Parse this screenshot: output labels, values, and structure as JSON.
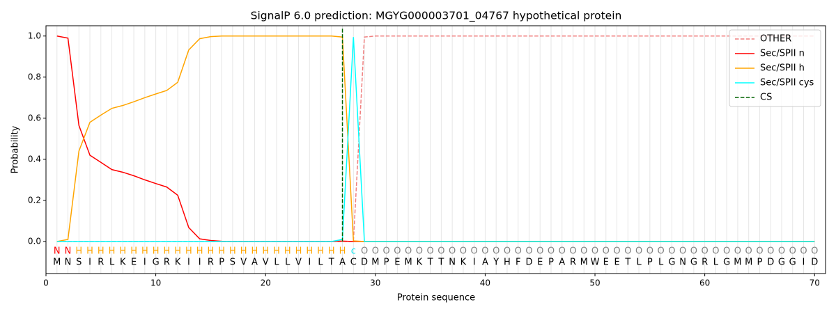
{
  "chart_data": {
    "type": "line",
    "title": "SignalP 6.0 prediction: MGYG000003701_04767 hypothetical protein",
    "x_label": "Protein sequence",
    "y_label": "Probability",
    "x": [
      1,
      2,
      3,
      4,
      5,
      6,
      7,
      8,
      9,
      10,
      11,
      12,
      13,
      14,
      15,
      16,
      17,
      18,
      19,
      20,
      21,
      22,
      23,
      24,
      25,
      26,
      27,
      28,
      29,
      30,
      31,
      32,
      33,
      34,
      35,
      36,
      37,
      38,
      39,
      40,
      41,
      42,
      43,
      44,
      45,
      46,
      47,
      48,
      49,
      50,
      51,
      52,
      53,
      54,
      55,
      56,
      57,
      58,
      59,
      60,
      61,
      62,
      63,
      64,
      65,
      66,
      67,
      68,
      69,
      70
    ],
    "residues": [
      "M",
      "N",
      "S",
      "I",
      "R",
      "L",
      "K",
      "E",
      "I",
      "G",
      "R",
      "K",
      "I",
      "I",
      "R",
      "P",
      "S",
      "V",
      "A",
      "V",
      "L",
      "L",
      "V",
      "I",
      "L",
      "T",
      "A",
      "C",
      "D",
      "M",
      "P",
      "E",
      "M",
      "K",
      "T",
      "T",
      "N",
      "K",
      "I",
      "A",
      "Y",
      "H",
      "F",
      "D",
      "E",
      "P",
      "A",
      "R",
      "M",
      "W",
      "E",
      "E",
      "T",
      "L",
      "P",
      "L",
      "G",
      "N",
      "G",
      "R",
      "L",
      "G",
      "M",
      "M",
      "P",
      "D",
      "G",
      "G",
      "I",
      "D"
    ],
    "region_labels": [
      "N",
      "N",
      "H",
      "H",
      "H",
      "H",
      "H",
      "H",
      "H",
      "H",
      "H",
      "H",
      "H",
      "H",
      "H",
      "H",
      "H",
      "H",
      "H",
      "H",
      "H",
      "H",
      "H",
      "H",
      "H",
      "H",
      "H",
      "c",
      "O",
      "O",
      "O",
      "O",
      "O",
      "O",
      "O",
      "O",
      "O",
      "O",
      "O",
      "O",
      "O",
      "O",
      "O",
      "O",
      "O",
      "O",
      "O",
      "O",
      "O",
      "O",
      "O",
      "O",
      "O",
      "O",
      "O",
      "O",
      "O",
      "O",
      "O",
      "O",
      "O",
      "O",
      "O",
      "O",
      "O",
      "O",
      "O",
      "O",
      "O",
      "O"
    ],
    "region_colors": {
      "N": "#ff0000",
      "H": "#ffa500",
      "c": "#00e5ee",
      "O": "#808080"
    },
    "series": [
      {
        "name": "OTHER",
        "color": "#f08080",
        "dashed": true,
        "values": [
          0,
          0,
          0,
          0,
          0,
          0,
          0,
          0,
          0,
          0,
          0,
          0,
          0,
          0,
          0,
          0,
          0,
          0,
          0,
          0,
          0,
          0,
          0,
          0,
          0,
          0,
          0,
          0,
          0.995,
          1,
          1,
          1,
          1,
          1,
          1,
          1,
          1,
          1,
          1,
          1,
          1,
          1,
          1,
          1,
          1,
          1,
          1,
          1,
          1,
          1,
          1,
          1,
          1,
          1,
          1,
          1,
          1,
          1,
          1,
          1,
          1,
          1,
          1,
          1,
          1,
          1,
          1,
          1,
          1,
          1
        ]
      },
      {
        "name": "Sec/SPII n",
        "color": "#ff0000",
        "dashed": false,
        "values": [
          1,
          0.99,
          0.565,
          0.42,
          0.385,
          0.35,
          0.337,
          0.32,
          0.3,
          0.282,
          0.265,
          0.225,
          0.068,
          0.013,
          0.005,
          0.001,
          0,
          0,
          0,
          0,
          0,
          0,
          0,
          0,
          0,
          0,
          0.002,
          0,
          0,
          0,
          0,
          0,
          0,
          0,
          0,
          0,
          0,
          0,
          0,
          0,
          0,
          0,
          0,
          0,
          0,
          0,
          0,
          0,
          0,
          0,
          0,
          0,
          0,
          0,
          0,
          0,
          0,
          0,
          0,
          0,
          0,
          0,
          0,
          0,
          0,
          0,
          0,
          0,
          0,
          0
        ]
      },
      {
        "name": "Sec/SPII h",
        "color": "#ffa500",
        "dashed": false,
        "values": [
          0,
          0.01,
          0.44,
          0.58,
          0.615,
          0.648,
          0.662,
          0.68,
          0.7,
          0.718,
          0.735,
          0.775,
          0.932,
          0.987,
          0.997,
          1,
          1,
          1,
          1,
          1,
          1,
          1,
          1,
          1,
          1,
          1,
          0.995,
          0.003,
          0,
          0,
          0,
          0,
          0,
          0,
          0,
          0,
          0,
          0,
          0,
          0,
          0,
          0,
          0,
          0,
          0,
          0,
          0,
          0,
          0,
          0,
          0,
          0,
          0,
          0,
          0,
          0,
          0,
          0,
          0,
          0,
          0,
          0,
          0,
          0,
          0,
          0,
          0,
          0,
          0,
          0
        ]
      },
      {
        "name": "Sec/SPII cys",
        "color": "#00ffff",
        "dashed": false,
        "values": [
          0,
          0,
          0,
          0,
          0,
          0,
          0,
          0,
          0,
          0,
          0,
          0,
          0,
          0,
          0,
          0,
          0,
          0,
          0,
          0,
          0,
          0,
          0,
          0,
          0,
          0,
          0.01,
          0.995,
          0,
          0,
          0,
          0,
          0,
          0,
          0,
          0,
          0,
          0,
          0,
          0,
          0,
          0,
          0,
          0,
          0,
          0,
          0,
          0,
          0,
          0,
          0,
          0,
          0,
          0,
          0,
          0,
          0,
          0,
          0,
          0,
          0,
          0,
          0,
          0,
          0,
          0,
          0,
          0,
          0,
          0
        ]
      },
      {
        "name": "CS",
        "color": "#006400",
        "dashed": true,
        "x": [
          27,
          27
        ],
        "values": [
          0,
          1.04
        ]
      }
    ],
    "xlim": [
      0,
      71
    ],
    "ylim": [
      -0.156,
      1.05
    ],
    "xticks": [
      0,
      10,
      20,
      30,
      40,
      50,
      60,
      70
    ],
    "yticks": [
      {
        "value": 0,
        "label": "0.0"
      },
      0.2,
      0.4,
      0.6,
      0.8,
      {
        "value": 1,
        "label": "1.0"
      }
    ],
    "grid": true,
    "legend": "upper right"
  }
}
